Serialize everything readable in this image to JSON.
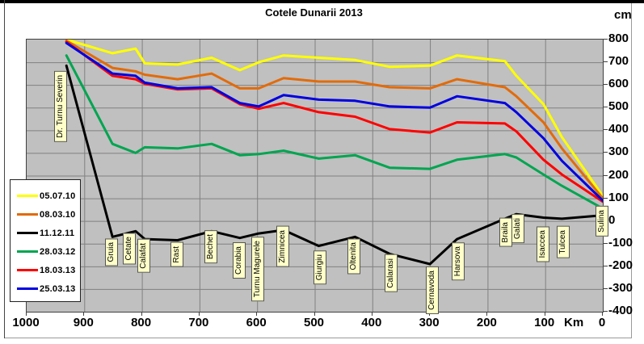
{
  "title": "Cotele Dunarii 2013",
  "y_axis": {
    "unit": "cm",
    "tick_labels": [
      "800",
      "700",
      "600",
      "500",
      "400",
      "300",
      "200",
      "100",
      "0",
      "-100",
      "-200",
      "-300",
      "-400"
    ],
    "min": -400,
    "max": 800,
    "step": 100
  },
  "x_axis": {
    "unit": "Km",
    "tick_labels": [
      "1000",
      "900",
      "800",
      "700",
      "600",
      "500",
      "400",
      "300",
      "200",
      "100",
      "0"
    ],
    "min": 0,
    "max": 1000,
    "step": 100,
    "reversed": true
  },
  "legend": {
    "position": "middle-left",
    "entries": [
      {
        "label": "05.07.10",
        "color": "#ffff00"
      },
      {
        "label": "08.03.10",
        "color": "#e26b0a"
      },
      {
        "label": "11.12.11",
        "color": "#000000"
      },
      {
        "label": "28.03.12",
        "color": "#00a550"
      },
      {
        "label": "18.03.13",
        "color": "#ff0000"
      },
      {
        "label": "25.03.13",
        "color": "#0000e0"
      }
    ]
  },
  "colors": {
    "plot_background": "#c0c0c0",
    "grid": "#808080",
    "plot_border": "#404040",
    "station_label_bg": "#ffffc8",
    "page_background": "#ffffff"
  },
  "chart_data": {
    "type": "line",
    "title": "Cotele Dunarii 2013",
    "xlabel": "Km",
    "ylabel": "cm",
    "xlim": [
      1000,
      0
    ],
    "ylim": [
      -400,
      800
    ],
    "grid": true,
    "stations": [
      {
        "name": "Dr. Turnu  Severin",
        "km": 931,
        "label_top": 88,
        "dx": -6
      },
      {
        "name": "Gruia",
        "km": 851,
        "label_top": 295,
        "dx": 0
      },
      {
        "name": "Cetate",
        "km": 811,
        "label_top": 288,
        "dx": -7
      },
      {
        "name": "Calafat",
        "km": 795,
        "label_top": 296,
        "dx": 0
      },
      {
        "name": "Rast",
        "km": 738,
        "label_top": 300,
        "dx": 0
      },
      {
        "name": "Bechet",
        "km": 679,
        "label_top": 285,
        "dx": 0
      },
      {
        "name": "Corabia",
        "km": 630,
        "label_top": 300,
        "dx": 0
      },
      {
        "name": "Turnu  Magurele",
        "km": 597,
        "label_top": 293,
        "dx": 0
      },
      {
        "name": "Zimnicea",
        "km": 554,
        "label_top": 280,
        "dx": 0
      },
      {
        "name": "Giurgiu",
        "km": 493,
        "label_top": 310,
        "dx": 3
      },
      {
        "name": "Oltenita",
        "km": 430,
        "label_top": 295,
        "dx": 0
      },
      {
        "name": "Calarasi",
        "km": 370,
        "label_top": 315,
        "dx": 3
      },
      {
        "name": "Cernavoda",
        "km": 300,
        "label_top": 330,
        "dx": 4
      },
      {
        "name": "Harsova",
        "km": 253,
        "label_top": 300,
        "dx": 2
      },
      {
        "name": "Braila",
        "km": 170,
        "label_top": 270,
        "dx": 2
      },
      {
        "name": "Galati",
        "km": 150,
        "label_top": 265,
        "dx": 3
      },
      {
        "name": "Isaccea",
        "km": 103,
        "label_top": 280,
        "dx": 0
      },
      {
        "name": "Tulcea",
        "km": 71,
        "label_top": 280,
        "dx": 3
      },
      {
        "name": "Sulina",
        "km": 0,
        "label_top": 255,
        "dx": 0
      }
    ],
    "series": [
      {
        "name": "05.07.10",
        "color": "#ffff00",
        "values": [
          800,
          740,
          760,
          695,
          690,
          720,
          665,
          700,
          730,
          720,
          710,
          680,
          685,
          730,
          705,
          640,
          515,
          370,
          110
        ]
      },
      {
        "name": "08.03.10",
        "color": "#e26b0a",
        "values": [
          795,
          675,
          660,
          645,
          625,
          650,
          585,
          585,
          630,
          615,
          615,
          590,
          585,
          625,
          590,
          550,
          435,
          320,
          100
        ]
      },
      {
        "name": "11.12.11",
        "color": "#000000",
        "values": [
          685,
          -70,
          -45,
          -80,
          -85,
          -45,
          -75,
          -55,
          -40,
          -110,
          -70,
          -145,
          -190,
          -80,
          10,
          30,
          15,
          10,
          25
        ]
      },
      {
        "name": "28.03.12",
        "color": "#00a550",
        "values": [
          730,
          340,
          300,
          325,
          320,
          340,
          290,
          295,
          310,
          275,
          290,
          235,
          230,
          270,
          295,
          280,
          205,
          155,
          55
        ]
      },
      {
        "name": "18.03.13",
        "color": "#ff0000",
        "values": [
          790,
          640,
          625,
          605,
          580,
          585,
          515,
          495,
          520,
          480,
          460,
          405,
          390,
          435,
          430,
          395,
          270,
          205,
          85
        ]
      },
      {
        "name": "25.03.13",
        "color": "#0000e0",
        "values": [
          785,
          650,
          640,
          610,
          585,
          590,
          520,
          505,
          555,
          535,
          530,
          505,
          500,
          550,
          520,
          480,
          365,
          265,
          90
        ]
      }
    ]
  }
}
